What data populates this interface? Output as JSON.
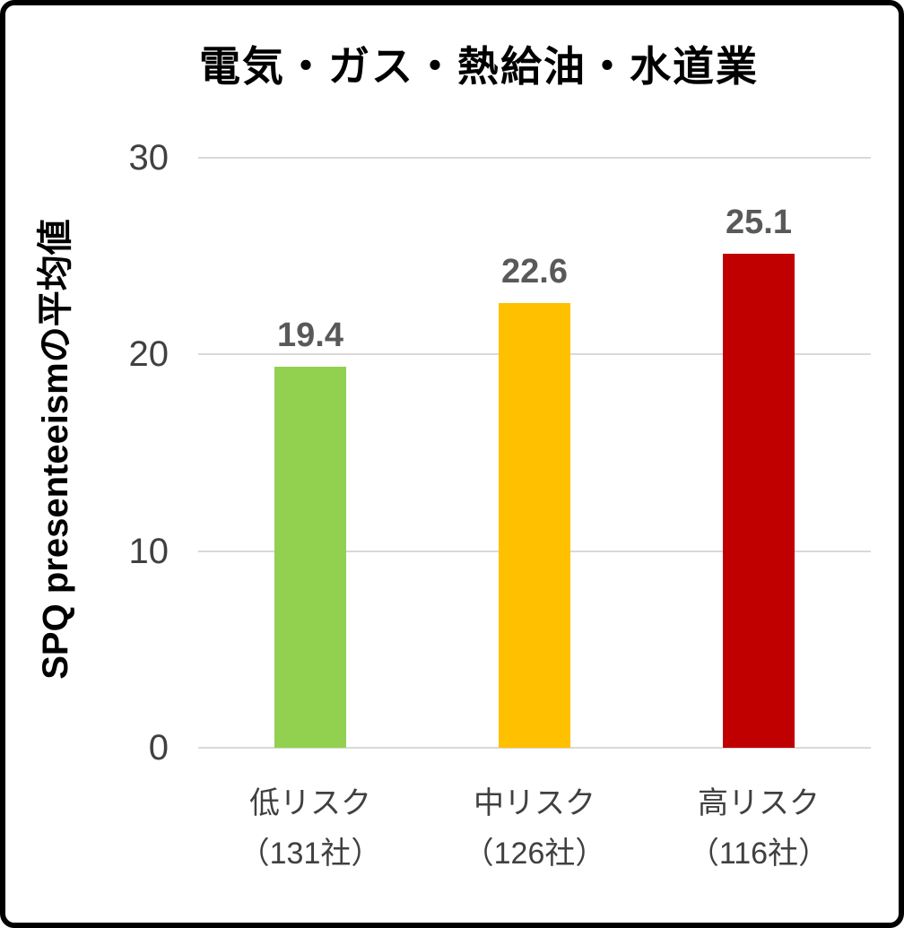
{
  "chart_data": {
    "type": "bar",
    "title": "電気・ガス・熱給油・水道業",
    "ylabel": "SPQ presenteeismの平均値",
    "xlabel": "",
    "ylim": [
      0,
      30
    ],
    "yticks": [
      0,
      10,
      20,
      30
    ],
    "grid": true,
    "legend": false,
    "categories": [
      "低リスク",
      "中リスク",
      "高リスク"
    ],
    "category_counts": [
      "（131社）",
      "（126社）",
      "（116社）"
    ],
    "values": [
      19.4,
      22.6,
      25.1
    ],
    "value_labels": [
      "19.4",
      "22.6",
      "25.1"
    ],
    "bar_colors": [
      "#92d050",
      "#ffc000",
      "#c00000"
    ],
    "value_label_color": "#595959",
    "gridline_color": "#d9d9d9"
  }
}
